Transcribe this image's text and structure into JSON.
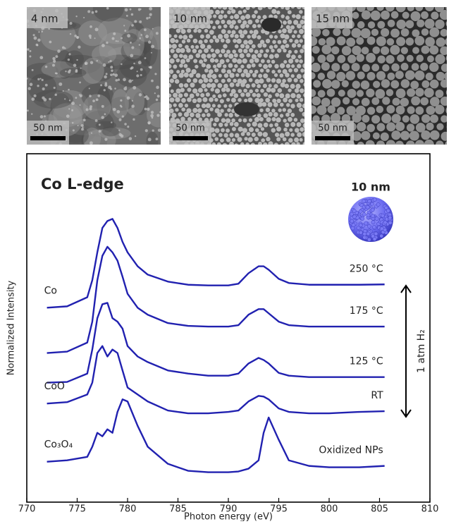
{
  "images": [
    {
      "label": "4 nm",
      "scale": "50 nm"
    },
    {
      "label": "10 nm",
      "scale": "50 nm"
    },
    {
      "label": "15 nm",
      "scale": "50 nm"
    }
  ],
  "chart_data": {
    "type": "line",
    "title": "Co L-edge",
    "particle_label": "10 nm",
    "x_label": "Photon energy (eV)",
    "y_label": "Normalized Intensity",
    "arrow_label": "1 atm H₂",
    "xlim": [
      770,
      810
    ],
    "xticks": [
      770,
      775,
      780,
      785,
      790,
      795,
      800,
      805,
      810
    ],
    "ylim": [
      0,
      100
    ],
    "grid": false,
    "x": [
      772,
      774,
      776,
      776.5,
      777,
      777.5,
      778,
      778.5,
      779,
      779.5,
      780,
      781,
      782,
      784,
      786,
      788,
      790,
      791,
      792,
      793,
      793.5,
      794,
      795,
      796,
      798,
      800,
      803,
      805.5
    ],
    "series": [
      {
        "name": "250 °C",
        "label": "Co",
        "color": "#2121b0",
        "values": [
          55.8,
          56.2,
          58.8,
          63.7,
          71.7,
          78.7,
          80.7,
          81.3,
          78.7,
          74.7,
          71.7,
          67.7,
          65.3,
          63.3,
          62.4,
          62.2,
          62.2,
          62.7,
          65.7,
          67.7,
          67.7,
          66.7,
          64.1,
          62.9,
          62.4,
          62.4,
          62.4,
          62.5
        ]
      },
      {
        "name": "175 °C",
        "color": "#2121b0",
        "values": [
          42.8,
          43.2,
          45.8,
          51.8,
          63.7,
          70.7,
          73.3,
          71.7,
          69.3,
          64.7,
          59.8,
          55.8,
          53.8,
          51.4,
          50.6,
          50.4,
          50.4,
          50.8,
          53.8,
          55.4,
          55.4,
          54.2,
          51.8,
          50.8,
          50.4,
          50.4,
          50.4,
          50.4
        ]
      },
      {
        "name": "125 °C",
        "color": "#2121b0",
        "values": [
          34.3,
          34.5,
          36.9,
          43.8,
          52.8,
          56.8,
          57.2,
          52.8,
          51.8,
          49.8,
          44.8,
          41.8,
          40.2,
          37.8,
          36.9,
          36.3,
          36.3,
          36.9,
          39.8,
          41.4,
          40.8,
          39.8,
          37.1,
          36.3,
          35.9,
          35.9,
          35.9,
          35.9
        ]
      },
      {
        "name": "RT",
        "label": "CoO",
        "color": "#2121b0",
        "values": [
          28.3,
          28.7,
          30.9,
          34.3,
          42.8,
          44.8,
          41.8,
          43.8,
          42.8,
          37.8,
          32.9,
          30.9,
          28.9,
          26.3,
          25.5,
          25.5,
          25.9,
          26.3,
          28.9,
          30.5,
          30.3,
          29.5,
          26.9,
          25.9,
          25.5,
          25.5,
          25.9,
          26.1
        ]
      },
      {
        "name": "Oxidized NPs",
        "label": "Co₃O₄",
        "color": "#2121b0",
        "values": [
          11.6,
          12.0,
          13.0,
          15.9,
          19.9,
          18.9,
          20.9,
          19.9,
          25.9,
          29.5,
          28.9,
          21.9,
          15.9,
          11.0,
          9.0,
          8.6,
          8.6,
          8.8,
          9.6,
          12.0,
          19.9,
          24.3,
          17.9,
          12.0,
          10.4,
          10.0,
          10.0,
          10.4
        ]
      }
    ]
  }
}
